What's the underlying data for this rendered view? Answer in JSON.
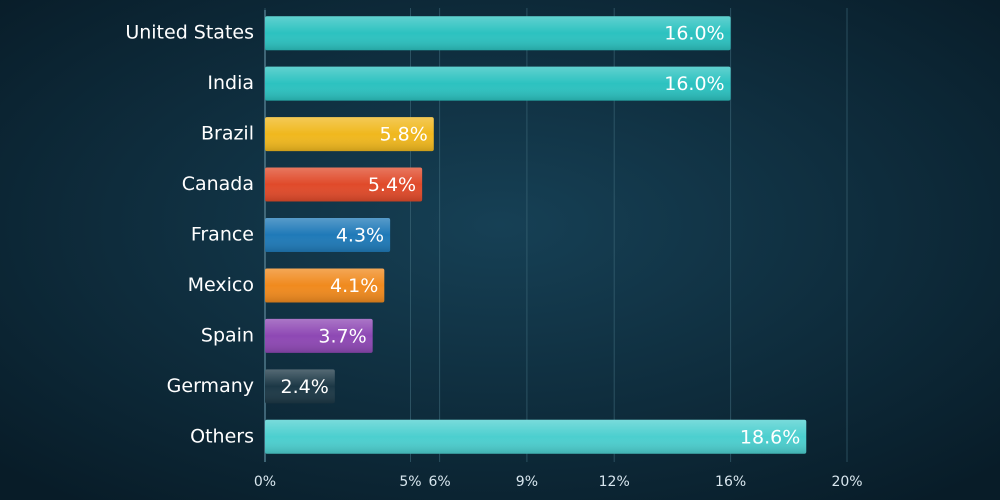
{
  "chart_data": {
    "type": "bar",
    "orientation": "horizontal",
    "categories": [
      "United States",
      "India",
      "Brazil",
      "Canada",
      "France",
      "Mexico",
      "Spain",
      "Germany",
      "Others"
    ],
    "values": [
      16.0,
      16.0,
      5.8,
      5.4,
      4.3,
      4.1,
      3.7,
      2.4,
      18.6
    ],
    "value_labels": [
      "16.0%",
      "16.0%",
      "5.8%",
      "5.4%",
      "4.3%",
      "4.1%",
      "3.7%",
      "2.4%",
      "18.6%"
    ],
    "colors": [
      "#2cc2c0",
      "#2cc2c0",
      "#f0b81e",
      "#e04a2a",
      "#1f7ab8",
      "#f08a1e",
      "#8e48b4",
      "#1c3846",
      "#4ccfcf"
    ],
    "xlim": [
      0,
      20
    ],
    "xticks": [
      {
        "value": 0,
        "label": "0%"
      },
      {
        "value": 5,
        "label": "5%"
      },
      {
        "value": 6,
        "label": "6%"
      },
      {
        "value": 9,
        "label": "9%"
      },
      {
        "value": 12,
        "label": "12%"
      },
      {
        "value": 16,
        "label": "16%"
      },
      {
        "value": 20,
        "label": "20%"
      }
    ],
    "grid": true
  }
}
